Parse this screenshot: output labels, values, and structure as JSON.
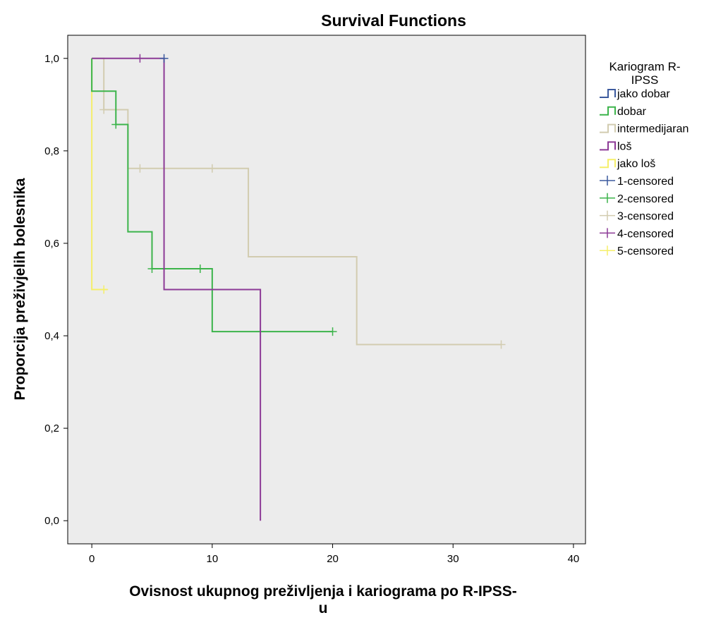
{
  "chart_data": {
    "type": "line",
    "subtype": "kaplan-meier-step",
    "title": "Survival Functions",
    "xlabel_lines": [
      "Ovisnost ukupnog preživljenja i kariograma po R-IPSS-",
      "u"
    ],
    "ylabel": "Proporcija preživjelih bolesnika",
    "xlim": [
      -2,
      41
    ],
    "ylim": [
      -0.05,
      1.05
    ],
    "xticks": [
      0,
      10,
      20,
      30,
      40
    ],
    "xtick_labels": [
      "0",
      "10",
      "20",
      "30",
      "40"
    ],
    "yticks": [
      0.0,
      0.2,
      0.4,
      0.6,
      0.8,
      1.0
    ],
    "ytick_labels": [
      "0,0",
      "0,2",
      "0,4",
      "0,6",
      "0,8",
      "1,0"
    ],
    "grid": false,
    "plot_background": "#ececec",
    "legend": {
      "title_lines": [
        "Kariogram R-",
        "IPSS"
      ],
      "placement": "right",
      "entries": [
        {
          "label": "jako dobar",
          "kind": "line",
          "color": "#3c5a9e"
        },
        {
          "label": "dobar",
          "kind": "line",
          "color": "#3cb44b"
        },
        {
          "label": "intermedijaran",
          "kind": "line",
          "color": "#d2ccb0"
        },
        {
          "label": "loš",
          "kind": "line",
          "color": "#8c3a96"
        },
        {
          "label": "jako loš",
          "kind": "line",
          "color": "#f5ef6a"
        },
        {
          "label": "1-censored",
          "kind": "censor",
          "color": "#3c5a9e"
        },
        {
          "label": "2-censored",
          "kind": "censor",
          "color": "#3cb44b"
        },
        {
          "label": "3-censored",
          "kind": "censor",
          "color": "#d2ccb0"
        },
        {
          "label": "4-censored",
          "kind": "censor",
          "color": "#8c3a96"
        },
        {
          "label": "5-censored",
          "kind": "censor",
          "color": "#f5ef6a"
        }
      ]
    },
    "series": [
      {
        "name": "intermedijaran",
        "color": "#d2ccb0",
        "steps": [
          [
            0,
            1.0
          ],
          [
            1,
            0.889
          ],
          [
            3,
            0.762
          ],
          [
            13,
            0.571
          ],
          [
            22,
            0.381
          ],
          [
            34,
            0.381
          ]
        ],
        "censored": [
          [
            1,
            0.889
          ],
          [
            4,
            0.762
          ],
          [
            10,
            0.762
          ],
          [
            34,
            0.381
          ]
        ]
      },
      {
        "name": "jako loš",
        "color": "#f5ef6a",
        "steps": [
          [
            0,
            1.0
          ],
          [
            0,
            0.5
          ],
          [
            1.3,
            0.5
          ]
        ],
        "censored": [
          [
            1,
            0.5
          ]
        ]
      },
      {
        "name": "dobar",
        "color": "#3cb44b",
        "steps": [
          [
            0,
            1.0
          ],
          [
            0,
            0.929
          ],
          [
            2,
            0.857
          ],
          [
            3,
            0.625
          ],
          [
            5,
            0.545
          ],
          [
            10,
            0.409
          ],
          [
            20,
            0.409
          ]
        ],
        "censored": [
          [
            2,
            0.857
          ],
          [
            5,
            0.545
          ],
          [
            9,
            0.545
          ],
          [
            14,
            0.409
          ],
          [
            20,
            0.409
          ]
        ]
      },
      {
        "name": "loš",
        "color": "#8c3a96",
        "steps": [
          [
            0,
            1.0
          ],
          [
            6,
            0.5
          ],
          [
            14,
            0.0
          ]
        ],
        "censored": [
          [
            4,
            1.0
          ]
        ]
      },
      {
        "name": "jako dobar",
        "color": "#3c5a9e",
        "steps": [
          [
            6,
            1.0
          ]
        ],
        "censored": [
          [
            6,
            1.0
          ]
        ]
      }
    ]
  }
}
